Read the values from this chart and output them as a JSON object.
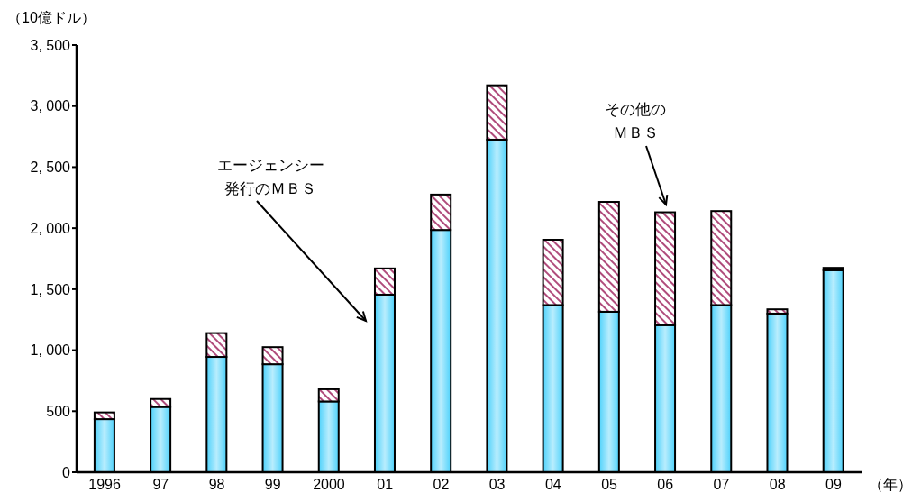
{
  "chart_data": {
    "type": "bar",
    "stacked": true,
    "ylabel": "（10億ドル）",
    "xlabel": "（年）",
    "categories": [
      "1996",
      "97",
      "98",
      "99",
      "2000",
      "01",
      "02",
      "03",
      "04",
      "05",
      "06",
      "07",
      "08",
      "09"
    ],
    "series": [
      {
        "color": "#4fd2fb",
        "values": [
          435,
          535,
          945,
          885,
          580,
          1455,
          1985,
          2725,
          1370,
          1315,
          1205,
          1370,
          1300,
          1655
        ]
      },
      {
        "color": "#b04c7c",
        "values": [
          55,
          65,
          195,
          140,
          100,
          215,
          290,
          445,
          535,
          900,
          925,
          770,
          35,
          20
        ]
      }
    ],
    "ylim": [
      0,
      3500
    ],
    "yticks": [
      {
        "value": 0,
        "label": "0"
      },
      {
        "value": 500,
        "label": "500"
      },
      {
        "value": 1000,
        "label": "1, 000"
      },
      {
        "value": 1500,
        "label": "1, 500"
      },
      {
        "value": 2000,
        "label": "2, 000"
      },
      {
        "value": 2500,
        "label": "2, 500"
      },
      {
        "value": 3000,
        "label": "3, 000"
      },
      {
        "value": 3500,
        "label": "3, 500"
      }
    ],
    "annotations": [
      "エージェンシー発行のＭＢＳ",
      "その他のＭＢＳ"
    ],
    "grid": false,
    "legend": false
  }
}
